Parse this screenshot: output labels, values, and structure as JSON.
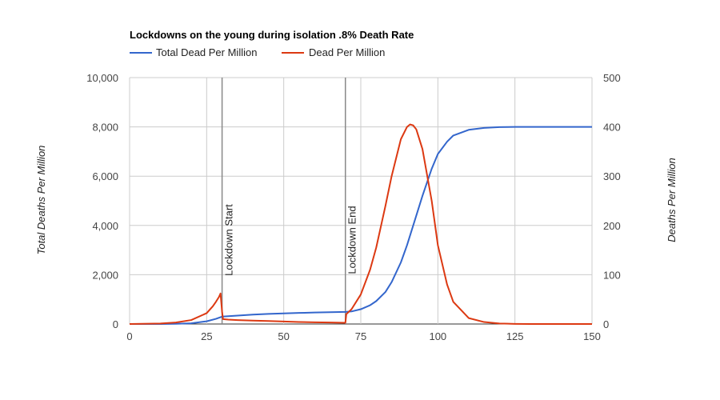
{
  "chart_data": {
    "type": "line",
    "title": "Lockdowns on the young  during isolation .8% Death Rate",
    "x_axis": {
      "ticks": [
        "0",
        "25",
        "50",
        "75",
        "100",
        "125",
        "150"
      ],
      "range": [
        0,
        150
      ]
    },
    "y_left": {
      "label": "Total Deaths Per Million",
      "ticks": [
        "0",
        "2,000",
        "4,000",
        "6,000",
        "8,000",
        "10,000"
      ],
      "range": [
        0,
        10000
      ]
    },
    "y_right": {
      "label": "Deaths Per Million",
      "ticks": [
        "0",
        "100",
        "200",
        "300",
        "400",
        "500"
      ],
      "range": [
        0,
        500
      ]
    },
    "grid": true,
    "legend_position": "top",
    "series": [
      {
        "name": "Total Dead Per Million",
        "axis": "left",
        "color": "#3366cc",
        "x": [
          0,
          10,
          15,
          20,
          25,
          28,
          30,
          35,
          40,
          45,
          50,
          55,
          60,
          65,
          70,
          72,
          75,
          78,
          80,
          83,
          85,
          88,
          90,
          92,
          95,
          98,
          100,
          103,
          105,
          110,
          115,
          120,
          125,
          130,
          150
        ],
        "y": [
          0,
          2,
          8,
          30,
          110,
          210,
          300,
          340,
          380,
          410,
          430,
          450,
          465,
          480,
          490,
          510,
          600,
          760,
          930,
          1300,
          1700,
          2500,
          3200,
          4000,
          5200,
          6300,
          6900,
          7400,
          7650,
          7880,
          7960,
          7990,
          8000,
          8000,
          8000
        ]
      },
      {
        "name": "Dead Per Million",
        "axis": "right",
        "color": "#dc3912",
        "x": [
          0,
          10,
          15,
          20,
          25,
          27,
          28,
          29,
          29.5,
          30,
          30.3,
          32,
          35,
          40,
          45,
          50,
          55,
          60,
          65,
          70,
          70.3,
          72,
          75,
          78,
          80,
          83,
          85,
          88,
          90,
          91,
          92,
          93,
          95,
          98,
          100,
          103,
          105,
          110,
          115,
          120,
          125,
          130,
          150
        ],
        "y": [
          0,
          1,
          3,
          8,
          22,
          36,
          45,
          55,
          62,
          25,
          10,
          9,
          8,
          7,
          6,
          5,
          4,
          3.5,
          3,
          2.5,
          20,
          30,
          60,
          110,
          155,
          240,
          300,
          375,
          400,
          405,
          403,
          395,
          355,
          250,
          160,
          80,
          45,
          12,
          4,
          1,
          0.3,
          0,
          0
        ]
      }
    ],
    "annotations": [
      {
        "label": "Lockdown Start",
        "x": 30
      },
      {
        "label": "Lockdown End",
        "x": 70
      }
    ]
  }
}
